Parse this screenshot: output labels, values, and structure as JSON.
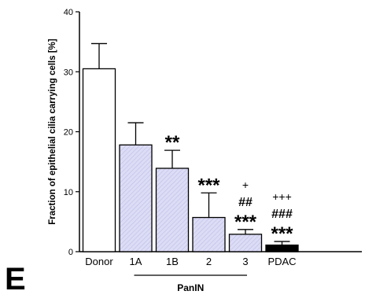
{
  "chart_data": {
    "type": "bar",
    "categories": [
      "Donor",
      "1A",
      "1B",
      "2",
      "3",
      "PDAC"
    ],
    "values": [
      30.5,
      17.8,
      13.9,
      5.7,
      2.9,
      1.1
    ],
    "errors": [
      4.2,
      3.7,
      3.0,
      4.1,
      0.8,
      0.6
    ],
    "ylabel": "Fraction of epithelial cilia carrying cells [%]",
    "xlabel": "",
    "ylim": [
      0,
      40
    ],
    "yticks": [
      0,
      10,
      20,
      30,
      40
    ],
    "group_label": "PanIN",
    "group_categories": [
      "1A",
      "1B",
      "2",
      "3"
    ],
    "annotations": [
      {
        "category": "1B",
        "stars": "**",
        "hashes": "",
        "plus": ""
      },
      {
        "category": "2",
        "stars": "***",
        "hashes": "",
        "plus": ""
      },
      {
        "category": "3",
        "stars": "***",
        "hashes": "##",
        "plus": "+"
      },
      {
        "category": "PDAC",
        "stars": "***",
        "hashes": "###",
        "plus": "+++"
      }
    ],
    "fills": {
      "Donor": "#ffffff",
      "1A": "#dcdcf5",
      "1B": "#dcdcf5",
      "2": "#dcdcf5",
      "3": "#dcdcf5",
      "PDAC": "#000000"
    },
    "grid": false,
    "legend": "none"
  },
  "panel_label": "E"
}
